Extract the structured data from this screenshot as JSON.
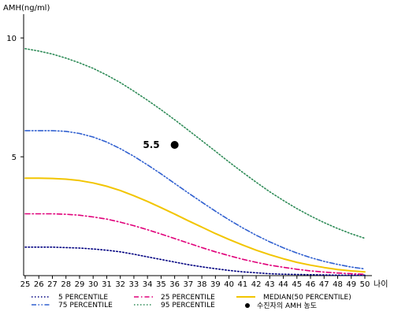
{
  "chart_data": {
    "type": "line",
    "ylabel": "AMH(ng/ml)",
    "xlabel": "나이",
    "xlim": [
      25,
      50
    ],
    "ylim": [
      0,
      11
    ],
    "yticks": [
      5,
      10
    ],
    "x": [
      25,
      26,
      27,
      28,
      29,
      30,
      31,
      32,
      33,
      34,
      35,
      36,
      37,
      38,
      39,
      40,
      41,
      42,
      43,
      44,
      45,
      46,
      47,
      48,
      49,
      50
    ],
    "grid": false,
    "series": [
      {
        "name": "5 PERCENTILE",
        "color": "#000080",
        "style": "dotted",
        "values": [
          1.2,
          1.2,
          1.2,
          1.18,
          1.16,
          1.12,
          1.07,
          1.0,
          0.9,
          0.79,
          0.68,
          0.57,
          0.46,
          0.37,
          0.29,
          0.22,
          0.16,
          0.12,
          0.08,
          0.06,
          0.05,
          0.04,
          0.03,
          0.02,
          0.02,
          0.02
        ]
      },
      {
        "name": "25 PERCENTILE",
        "color": "#e0007a",
        "style": "dashdot",
        "values": [
          2.6,
          2.6,
          2.6,
          2.58,
          2.54,
          2.47,
          2.38,
          2.25,
          2.1,
          1.93,
          1.75,
          1.56,
          1.37,
          1.18,
          1.0,
          0.84,
          0.69,
          0.56,
          0.44,
          0.35,
          0.27,
          0.2,
          0.15,
          0.11,
          0.08,
          0.06
        ]
      },
      {
        "name": "MEDIAN(50 PERCENTILE)",
        "color": "#f2c500",
        "style": "solid",
        "values": [
          4.1,
          4.1,
          4.09,
          4.06,
          4.0,
          3.9,
          3.76,
          3.58,
          3.36,
          3.12,
          2.86,
          2.59,
          2.31,
          2.04,
          1.77,
          1.52,
          1.29,
          1.07,
          0.88,
          0.71,
          0.56,
          0.44,
          0.34,
          0.26,
          0.2,
          0.16
        ]
      },
      {
        "name": "75 PERCENTILE",
        "color": "#3060d0",
        "style": "dashdotdot",
        "values": [
          6.1,
          6.1,
          6.1,
          6.07,
          5.98,
          5.83,
          5.62,
          5.34,
          5.02,
          4.66,
          4.28,
          3.88,
          3.48,
          3.09,
          2.71,
          2.35,
          2.01,
          1.7,
          1.42,
          1.17,
          0.95,
          0.76,
          0.6,
          0.47,
          0.36,
          0.28
        ]
      },
      {
        "name": "95 PERCENTILE",
        "color": "#2e8b57",
        "style": "dotted",
        "values": [
          9.55,
          9.45,
          9.32,
          9.15,
          8.95,
          8.72,
          8.44,
          8.12,
          7.76,
          7.38,
          6.98,
          6.56,
          6.12,
          5.68,
          5.23,
          4.78,
          4.35,
          3.93,
          3.53,
          3.16,
          2.82,
          2.51,
          2.23,
          1.98,
          1.76,
          1.57
        ]
      }
    ],
    "marker": {
      "name": "수진자의 AMH 농도",
      "x": 36,
      "y": 5.5,
      "label": "5.5",
      "color": "#000000"
    },
    "legend_position": "bottom"
  }
}
